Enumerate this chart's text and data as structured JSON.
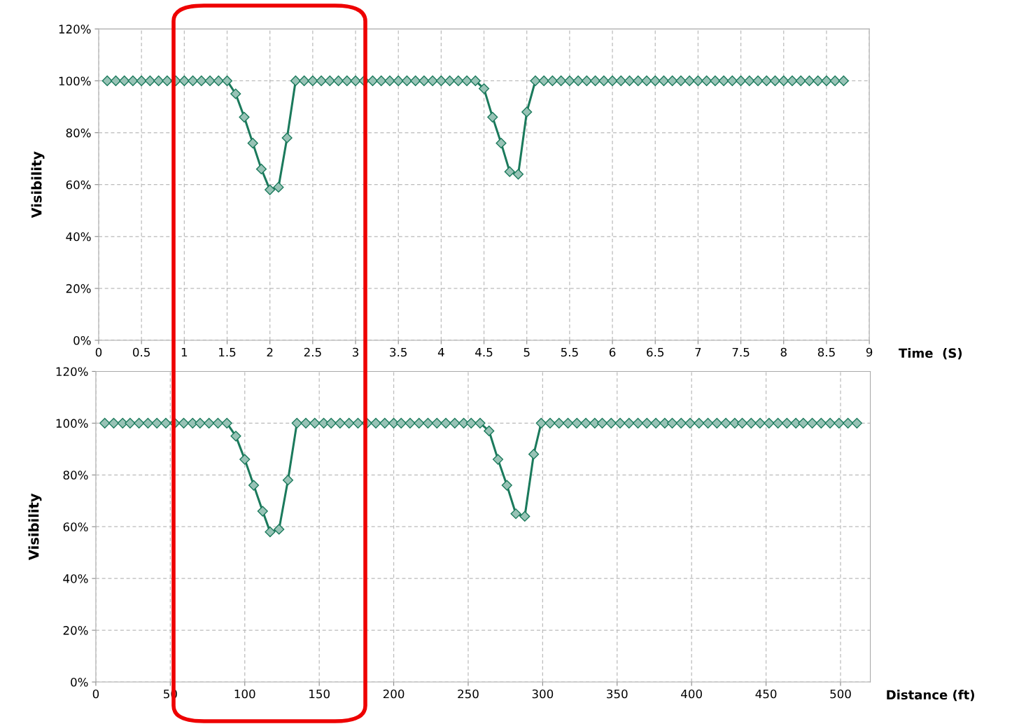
{
  "chart_data": [
    {
      "type": "line",
      "xlabel": "Time  (S)",
      "ylabel": "Visibility",
      "x": [
        0.1,
        0.2,
        0.3,
        0.4,
        0.5,
        0.6,
        0.7,
        0.8,
        0.9,
        1.0,
        1.1,
        1.2,
        1.3,
        1.4,
        1.5,
        1.6,
        1.7,
        1.8,
        1.9,
        2.0,
        2.1,
        2.2,
        2.3,
        2.4,
        2.5,
        2.6,
        2.7,
        2.8,
        2.9,
        3.0,
        3.1,
        3.2,
        3.3,
        3.4,
        3.5,
        3.6,
        3.7,
        3.8,
        3.9,
        4.0,
        4.1,
        4.2,
        4.3,
        4.4,
        4.5,
        4.6,
        4.7,
        4.8,
        4.9,
        5.0,
        5.1,
        5.2,
        5.3,
        5.4,
        5.5,
        5.6,
        5.7,
        5.8,
        5.9,
        6.0,
        6.1,
        6.2,
        6.3,
        6.4,
        6.5,
        6.6,
        6.7,
        6.8,
        6.9,
        7.0,
        7.1,
        7.2,
        7.3,
        7.4,
        7.5,
        7.6,
        7.7,
        7.8,
        7.9,
        8.0,
        8.1,
        8.2,
        8.3,
        8.4,
        8.5,
        8.6,
        8.7
      ],
      "series": [
        {
          "color": "#1b7a5c",
          "values": [
            100,
            100,
            100,
            100,
            100,
            100,
            100,
            100,
            100,
            100,
            100,
            100,
            100,
            100,
            100,
            95,
            86,
            76,
            66,
            58,
            59,
            78,
            100,
            100,
            100,
            100,
            100,
            100,
            100,
            100,
            100,
            100,
            100,
            100,
            100,
            100,
            100,
            100,
            100,
            100,
            100,
            100,
            100,
            100,
            97,
            86,
            76,
            65,
            64,
            88,
            100,
            100,
            100,
            100,
            100,
            100,
            100,
            100,
            100,
            100,
            100,
            100,
            100,
            100,
            100,
            100,
            100,
            100,
            100,
            100,
            100,
            100,
            100,
            100,
            100,
            100,
            100,
            100,
            100,
            100,
            100,
            100,
            100,
            100,
            100,
            100,
            100
          ]
        }
      ],
      "xlim": [
        0,
        9
      ],
      "xticks": [
        0,
        0.5,
        1,
        1.5,
        2,
        2.5,
        3,
        3.5,
        4,
        4.5,
        5,
        5.5,
        6,
        6.5,
        7,
        7.5,
        8,
        8.5,
        9
      ],
      "ylim": [
        0,
        120
      ],
      "yticks": [
        {
          "value": 0,
          "label": "0%"
        },
        {
          "value": 20,
          "label": "20%"
        },
        {
          "value": 40,
          "label": "40%"
        },
        {
          "value": 60,
          "label": "60%"
        },
        {
          "value": 80,
          "label": "80%"
        },
        {
          "value": 100,
          "label": "100%"
        },
        {
          "value": 120,
          "label": "120%"
        }
      ],
      "grid": true,
      "marker": "diamond",
      "line_style": "solid"
    },
    {
      "type": "line",
      "xlabel": "Distance (ft)",
      "ylabel": "Visibility",
      "x": [
        6,
        12,
        18,
        23,
        29,
        35,
        41,
        47,
        53,
        59,
        65,
        70,
        76,
        82,
        88,
        94,
        100,
        106,
        112,
        117,
        123,
        129,
        135,
        141,
        147,
        153,
        158,
        164,
        170,
        176,
        182,
        188,
        194,
        200,
        205,
        211,
        217,
        223,
        229,
        235,
        241,
        247,
        252,
        258,
        264,
        270,
        276,
        282,
        288,
        294,
        299,
        305,
        311,
        317,
        323,
        329,
        335,
        340,
        346,
        352,
        358,
        364,
        370,
        376,
        382,
        387,
        393,
        399,
        405,
        411,
        417,
        423,
        429,
        434,
        440,
        446,
        452,
        458,
        464,
        470,
        475,
        481,
        487,
        493,
        499,
        505,
        511
      ],
      "series": [
        {
          "color": "#1b7a5c",
          "values": [
            100,
            100,
            100,
            100,
            100,
            100,
            100,
            100,
            100,
            100,
            100,
            100,
            100,
            100,
            100,
            95,
            86,
            76,
            66,
            58,
            59,
            78,
            100,
            100,
            100,
            100,
            100,
            100,
            100,
            100,
            100,
            100,
            100,
            100,
            100,
            100,
            100,
            100,
            100,
            100,
            100,
            100,
            100,
            100,
            97,
            86,
            76,
            65,
            64,
            88,
            100,
            100,
            100,
            100,
            100,
            100,
            100,
            100,
            100,
            100,
            100,
            100,
            100,
            100,
            100,
            100,
            100,
            100,
            100,
            100,
            100,
            100,
            100,
            100,
            100,
            100,
            100,
            100,
            100,
            100,
            100,
            100,
            100,
            100,
            100,
            100,
            100
          ]
        }
      ],
      "xlim": [
        0,
        520
      ],
      "xticks": [
        0,
        50,
        100,
        150,
        200,
        250,
        300,
        350,
        400,
        450,
        500
      ],
      "ylim": [
        0,
        120
      ],
      "yticks": [
        {
          "value": 0,
          "label": "0%"
        },
        {
          "value": 20,
          "label": "20%"
        },
        {
          "value": 40,
          "label": "40%"
        },
        {
          "value": 60,
          "label": "60%"
        },
        {
          "value": 80,
          "label": "80%"
        },
        {
          "value": 100,
          "label": "100%"
        },
        {
          "value": 120,
          "label": "120%"
        }
      ],
      "grid": true,
      "marker": "diamond",
      "line_style": "solid"
    }
  ]
}
